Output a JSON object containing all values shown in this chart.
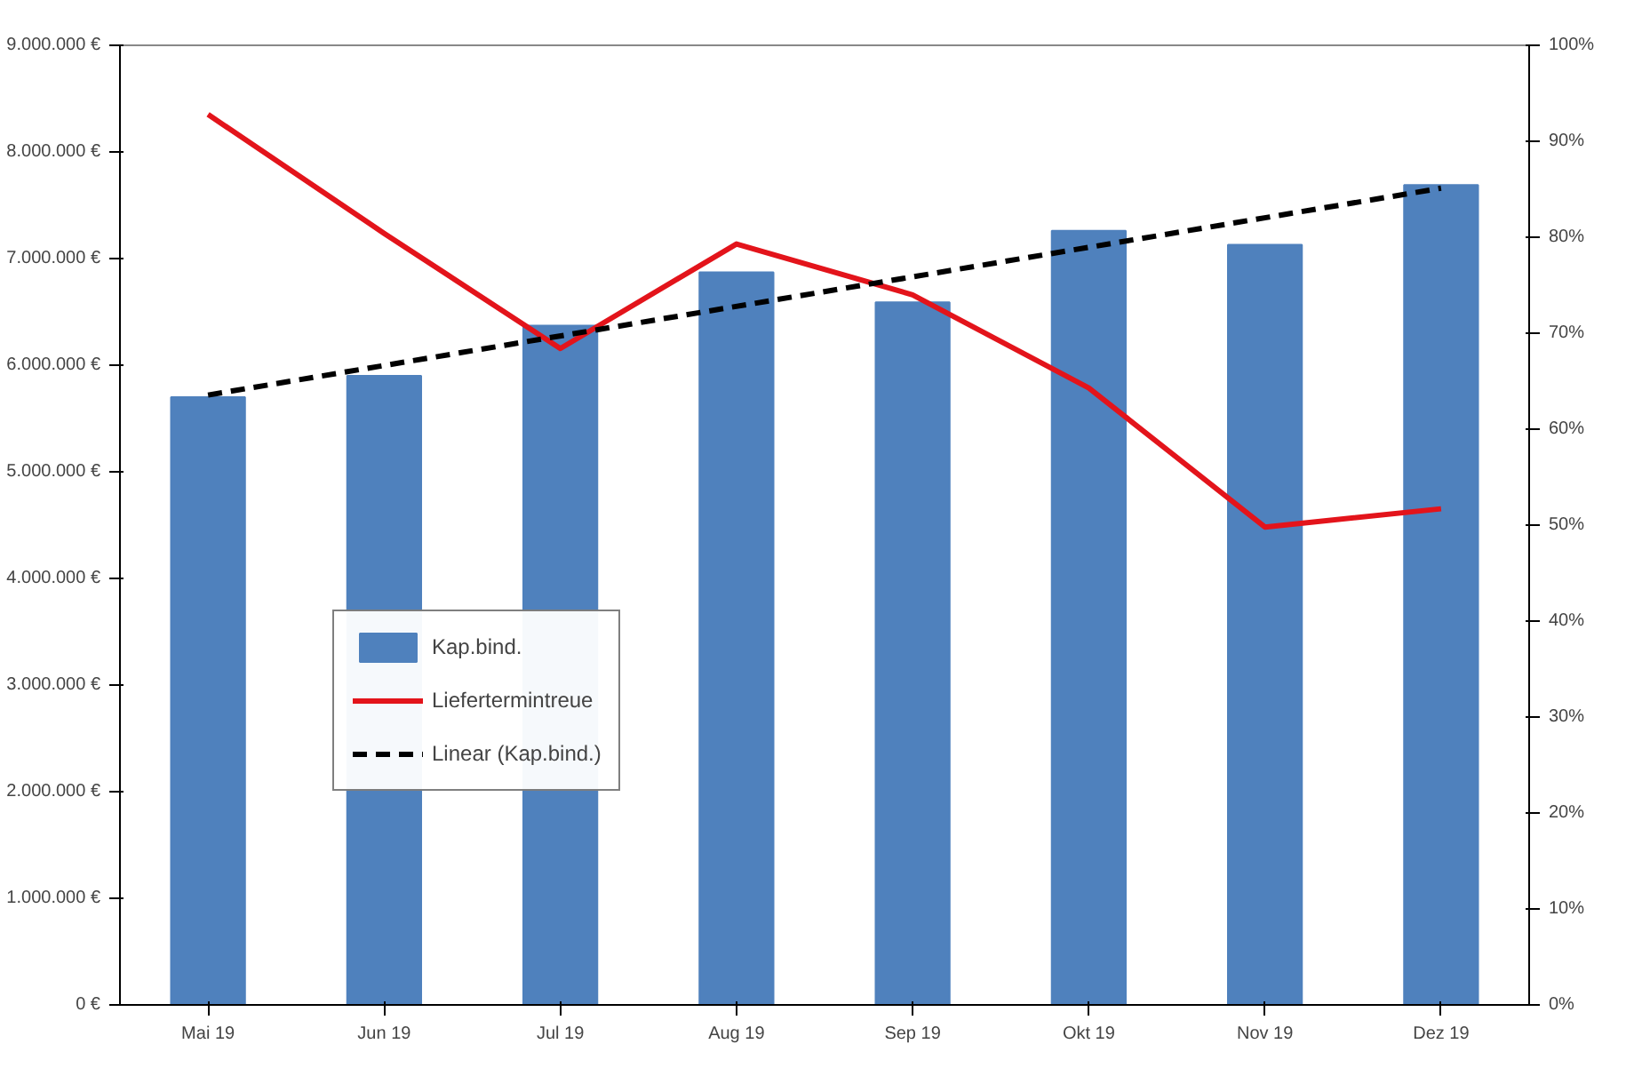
{
  "chart_data": {
    "type": "bar",
    "categories": [
      "Mai 19",
      "Jun 19",
      "Jul 19",
      "Aug 19",
      "Sep 19",
      "Okt 19",
      "Nov 19",
      "Dez 19"
    ],
    "series": [
      {
        "name": "Kap.bind.",
        "color": "#4f81bd",
        "values": [
          5700000,
          5900000,
          6370000,
          6870000,
          6590000,
          7260000,
          7130000,
          7690000
        ]
      },
      {
        "name": "Liefertermintreue",
        "type": "line",
        "axis": "y2",
        "color": "#e3141b",
        "values": [
          92.8,
          80.4,
          68.4,
          79.3,
          74.0,
          64.3,
          49.8,
          51.7
        ]
      },
      {
        "name": "Linear (Kap.bind.)",
        "type": "line",
        "color": "#000000",
        "line_style": "dashed",
        "x": [
          "Mai 19",
          "Dez 19"
        ],
        "values": [
          5720000,
          7660000
        ]
      }
    ],
    "ylim": [
      0,
      9000000
    ],
    "yticks": [
      {
        "value": 0,
        "label": "0 €"
      },
      {
        "value": 1000000,
        "label": "1.000.000 €"
      },
      {
        "value": 2000000,
        "label": "2.000.000 €"
      },
      {
        "value": 3000000,
        "label": "3.000.000 €"
      },
      {
        "value": 4000000,
        "label": "4.000.000 €"
      },
      {
        "value": 5000000,
        "label": "5.000.000 €"
      },
      {
        "value": 6000000,
        "label": "6.000.000 €"
      },
      {
        "value": 7000000,
        "label": "7.000.000 €"
      },
      {
        "value": 8000000,
        "label": "8.000.000 €"
      },
      {
        "value": 9000000,
        "label": "9.000.000 €"
      }
    ],
    "y2lim": [
      0,
      100
    ],
    "y2ticks": [
      {
        "value": 0,
        "label": "0%"
      },
      {
        "value": 10,
        "label": "10%"
      },
      {
        "value": 20,
        "label": "20%"
      },
      {
        "value": 30,
        "label": "30%"
      },
      {
        "value": 40,
        "label": "40%"
      },
      {
        "value": 50,
        "label": "50%"
      },
      {
        "value": 60,
        "label": "60%"
      },
      {
        "value": 70,
        "label": "70%"
      },
      {
        "value": 80,
        "label": "80%"
      },
      {
        "value": 90,
        "label": "90%"
      },
      {
        "value": 100,
        "label": "100%"
      }
    ],
    "legend": "left",
    "grid": false
  }
}
